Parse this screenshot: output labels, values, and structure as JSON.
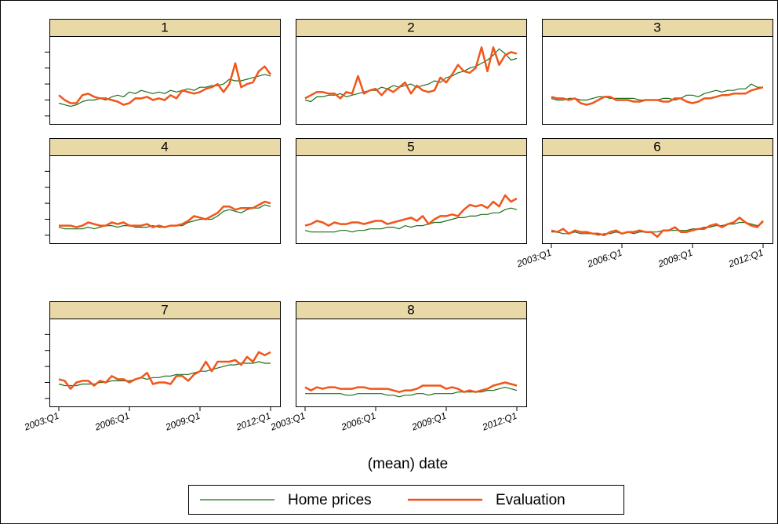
{
  "chart_data": {
    "type": "line",
    "xlabel": "(mean) date",
    "x": [
      "2003:Q1",
      null,
      null,
      null,
      null,
      null,
      null,
      null,
      null,
      null,
      null,
      null,
      "2006:Q1",
      null,
      null,
      null,
      null,
      null,
      null,
      null,
      null,
      null,
      null,
      null,
      "2009:Q1",
      null,
      null,
      null,
      null,
      null,
      null,
      null,
      null,
      null,
      null,
      null,
      "2012:Q1"
    ],
    "ylim": [
      -0.5,
      5
    ],
    "yticks": [
      0,
      1,
      2,
      3,
      4
    ],
    "series": [
      {
        "name": "Home prices",
        "color": "#1b6e1b"
      },
      {
        "name": "Evaluation",
        "color": "#f0561a"
      }
    ],
    "panels": [
      {
        "title": "1",
        "series": [
          {
            "values": [
              0.8,
              0.7,
              0.6,
              0.7,
              0.9,
              1.0,
              1.0,
              1.1,
              1.0,
              1.2,
              1.3,
              1.2,
              1.5,
              1.4,
              1.6,
              1.5,
              1.4,
              1.5,
              1.4,
              1.6,
              1.5,
              1.6,
              1.7,
              1.6,
              1.8,
              1.8,
              1.9,
              1.9,
              2.0,
              2.3,
              2.2,
              2.2,
              2.3,
              2.4,
              2.5,
              2.6,
              2.5
            ]
          },
          {
            "values": [
              1.3,
              1.0,
              0.8,
              0.8,
              1.3,
              1.4,
              1.2,
              1.1,
              1.1,
              1.0,
              0.9,
              0.7,
              0.8,
              1.1,
              1.1,
              1.2,
              1.0,
              1.1,
              1.0,
              1.3,
              1.1,
              1.6,
              1.5,
              1.4,
              1.5,
              1.7,
              1.8,
              2.0,
              1.5,
              2.0,
              3.3,
              1.8,
              2.0,
              2.1,
              2.8,
              3.1,
              2.6
            ]
          }
        ]
      },
      {
        "title": "2",
        "series": [
          {
            "values": [
              1.0,
              0.9,
              1.2,
              1.2,
              1.3,
              1.3,
              1.4,
              1.2,
              1.3,
              1.4,
              1.5,
              1.6,
              1.6,
              1.8,
              1.7,
              1.9,
              1.8,
              1.9,
              2.0,
              1.8,
              1.9,
              2.0,
              2.2,
              2.1,
              2.4,
              2.5,
              2.7,
              2.8,
              3.0,
              3.1,
              3.3,
              3.5,
              3.8,
              4.2,
              3.9,
              3.5,
              3.6
            ]
          },
          {
            "values": [
              1.1,
              1.3,
              1.5,
              1.5,
              1.4,
              1.4,
              1.1,
              1.5,
              1.4,
              2.5,
              1.4,
              1.6,
              1.7,
              1.3,
              1.7,
              1.5,
              1.8,
              2.1,
              1.4,
              1.9,
              1.6,
              1.5,
              1.6,
              2.4,
              2.1,
              2.6,
              3.2,
              2.8,
              2.7,
              3.0,
              4.3,
              2.8,
              4.3,
              3.2,
              3.8,
              4.0,
              3.9
            ]
          }
        ]
      },
      {
        "title": "3",
        "series": [
          {
            "values": [
              1.1,
              1.0,
              1.0,
              1.1,
              1.1,
              1.0,
              1.0,
              1.1,
              1.2,
              1.2,
              1.1,
              1.1,
              1.1,
              1.1,
              1.1,
              1.0,
              1.0,
              1.0,
              1.0,
              1.1,
              1.1,
              1.0,
              1.1,
              1.3,
              1.3,
              1.2,
              1.4,
              1.5,
              1.6,
              1.5,
              1.6,
              1.6,
              1.7,
              1.7,
              2.0,
              1.8,
              1.8
            ]
          },
          {
            "values": [
              1.2,
              1.1,
              1.1,
              1.0,
              1.1,
              0.8,
              0.7,
              0.8,
              1.0,
              1.2,
              1.2,
              1.0,
              1.0,
              1.0,
              0.9,
              0.9,
              1.0,
              1.0,
              1.0,
              0.9,
              0.9,
              1.1,
              1.1,
              0.9,
              0.8,
              0.9,
              1.1,
              1.1,
              1.2,
              1.3,
              1.3,
              1.4,
              1.4,
              1.4,
              1.6,
              1.7,
              1.8
            ]
          }
        ]
      },
      {
        "title": "4",
        "series": [
          {
            "values": [
              0.5,
              0.4,
              0.4,
              0.4,
              0.4,
              0.5,
              0.4,
              0.5,
              0.6,
              0.6,
              0.5,
              0.6,
              0.6,
              0.5,
              0.5,
              0.5,
              0.6,
              0.5,
              0.5,
              0.6,
              0.6,
              0.6,
              0.8,
              0.9,
              1.0,
              1.0,
              1.0,
              1.2,
              1.5,
              1.6,
              1.5,
              1.4,
              1.6,
              1.7,
              1.7,
              1.9,
              1.8
            ]
          },
          {
            "values": [
              0.6,
              0.6,
              0.6,
              0.5,
              0.6,
              0.8,
              0.7,
              0.6,
              0.6,
              0.8,
              0.7,
              0.8,
              0.6,
              0.6,
              0.6,
              0.7,
              0.5,
              0.6,
              0.5,
              0.6,
              0.6,
              0.7,
              0.9,
              1.2,
              1.1,
              1.0,
              1.2,
              1.4,
              1.8,
              1.8,
              1.6,
              1.7,
              1.7,
              1.7,
              1.9,
              2.1,
              2.0
            ]
          }
        ]
      },
      {
        "title": "5",
        "series": [
          {
            "values": [
              0.3,
              0.2,
              0.2,
              0.2,
              0.2,
              0.2,
              0.3,
              0.3,
              0.2,
              0.3,
              0.3,
              0.4,
              0.4,
              0.4,
              0.5,
              0.5,
              0.4,
              0.6,
              0.5,
              0.6,
              0.6,
              0.7,
              0.8,
              0.8,
              0.9,
              1.0,
              1.1,
              1.1,
              1.2,
              1.2,
              1.3,
              1.3,
              1.4,
              1.4,
              1.6,
              1.7,
              1.6
            ]
          },
          {
            "values": [
              0.6,
              0.7,
              0.9,
              0.8,
              0.6,
              0.8,
              0.7,
              0.7,
              0.8,
              0.8,
              0.7,
              0.8,
              0.9,
              0.9,
              0.7,
              0.8,
              0.9,
              1.0,
              1.1,
              0.9,
              1.2,
              0.7,
              1.0,
              1.2,
              1.2,
              1.3,
              1.2,
              1.6,
              1.9,
              1.8,
              1.9,
              1.7,
              2.1,
              1.8,
              2.5,
              2.1,
              2.3
            ]
          }
        ]
      },
      {
        "title": "6",
        "series": [
          {
            "values": [
              0.2,
              0.2,
              0.1,
              0.1,
              0.2,
              0.1,
              0.1,
              0.1,
              0.0,
              0.1,
              0.1,
              0.2,
              0.1,
              0.2,
              0.1,
              0.2,
              0.2,
              0.2,
              0.2,
              0.3,
              0.3,
              0.3,
              0.3,
              0.3,
              0.4,
              0.4,
              0.5,
              0.5,
              0.6,
              0.6,
              0.7,
              0.7,
              0.8,
              0.8,
              0.7,
              0.6,
              0.8
            ]
          },
          {
            "values": [
              0.3,
              0.2,
              0.4,
              0.1,
              0.3,
              0.2,
              0.2,
              0.1,
              0.1,
              0.0,
              0.2,
              0.3,
              0.1,
              0.2,
              0.2,
              0.3,
              0.2,
              0.2,
              -0.1,
              0.3,
              0.3,
              0.5,
              0.2,
              0.2,
              0.3,
              0.4,
              0.4,
              0.6,
              0.7,
              0.5,
              0.7,
              0.8,
              1.1,
              0.8,
              0.6,
              0.5,
              0.9
            ]
          }
        ]
      },
      {
        "title": "7",
        "series": [
          {
            "values": [
              0.9,
              0.8,
              0.8,
              0.8,
              0.9,
              0.9,
              0.9,
              1.0,
              1.0,
              1.1,
              1.1,
              1.1,
              1.1,
              1.2,
              1.3,
              1.2,
              1.3,
              1.3,
              1.4,
              1.4,
              1.5,
              1.5,
              1.5,
              1.6,
              1.7,
              1.7,
              1.8,
              1.9,
              2.0,
              2.1,
              2.1,
              2.2,
              2.2,
              2.2,
              2.3,
              2.2,
              2.2
            ]
          },
          {
            "values": [
              1.2,
              1.1,
              0.6,
              1.0,
              1.1,
              1.1,
              0.8,
              1.1,
              1.0,
              1.4,
              1.2,
              1.2,
              1.0,
              1.2,
              1.3,
              1.6,
              0.9,
              1.0,
              1.0,
              0.9,
              1.4,
              1.4,
              1.1,
              1.5,
              1.7,
              2.3,
              1.7,
              2.3,
              2.3,
              2.3,
              2.4,
              2.1,
              2.6,
              2.3,
              2.9,
              2.7,
              2.9
            ]
          }
        ]
      },
      {
        "title": "8",
        "series": [
          {
            "values": [
              0.3,
              0.3,
              0.3,
              0.3,
              0.3,
              0.3,
              0.3,
              0.2,
              0.2,
              0.3,
              0.3,
              0.3,
              0.3,
              0.3,
              0.2,
              0.2,
              0.1,
              0.2,
              0.2,
              0.3,
              0.3,
              0.2,
              0.3,
              0.3,
              0.3,
              0.3,
              0.4,
              0.4,
              0.4,
              0.4,
              0.4,
              0.5,
              0.5,
              0.6,
              0.7,
              0.6,
              0.5
            ]
          },
          {
            "values": [
              0.7,
              0.5,
              0.7,
              0.6,
              0.7,
              0.7,
              0.6,
              0.6,
              0.6,
              0.7,
              0.7,
              0.6,
              0.6,
              0.6,
              0.6,
              0.5,
              0.4,
              0.5,
              0.5,
              0.6,
              0.8,
              0.8,
              0.8,
              0.8,
              0.6,
              0.7,
              0.6,
              0.4,
              0.5,
              0.4,
              0.5,
              0.6,
              0.8,
              0.9,
              1.0,
              0.9,
              0.8
            ]
          }
        ]
      }
    ]
  }
}
